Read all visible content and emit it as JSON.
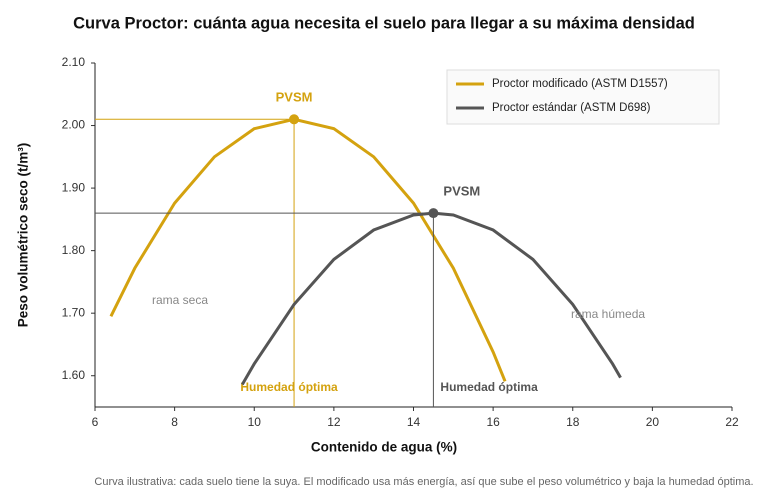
{
  "chart_data": {
    "type": "line",
    "title": "Curva Proctor: cuánta agua necesita el suelo para llegar a su máxima densidad",
    "x_label": "Contenido de agua (%)",
    "y_label": "Peso volumétrico seco (t/m³)",
    "note": "Curva ilustrativa: cada suelo tiene la suya. El modificado usa más energía, así que sube el peso volumétrico y baja la humedad óptima.",
    "xlim": [
      6,
      22
    ],
    "xticks": [
      6,
      8,
      10,
      12,
      14,
      16,
      18,
      20,
      22
    ],
    "ylim": [
      1.55,
      2.1
    ],
    "yticks": [
      {
        "value": 1.6,
        "label": "1.60"
      },
      {
        "value": 1.7,
        "label": "1.70"
      },
      {
        "value": 1.8,
        "label": "1.80"
      },
      {
        "value": 1.9,
        "label": "1.90"
      },
      {
        "value": 2.0,
        "label": "2.00"
      },
      {
        "value": 2.1,
        "label": "2.10"
      }
    ],
    "grid": false,
    "legend": "upper right",
    "annotations": [
      "rama seca",
      "rama húmeda"
    ],
    "series": [
      {
        "name": "Proctor modificado (ASTM D1557)",
        "color": "#d4a20f",
        "x": [
          6.4,
          7,
          8,
          9,
          10,
          11,
          12,
          13,
          14,
          15,
          16,
          16.3
        ],
        "values": [
          1.695,
          1.772,
          1.876,
          1.95,
          1.995,
          2.01,
          1.995,
          1.95,
          1.876,
          1.772,
          1.638,
          1.591
        ],
        "optimum": {
          "x": 11,
          "y": 2.01,
          "label": "PVSM",
          "x_label": "Humedad óptima"
        }
      },
      {
        "name": "Proctor estándar (ASTM D698)",
        "color": "#555555",
        "x": [
          9.7,
          10,
          11,
          12,
          13,
          14,
          14.5,
          15,
          16,
          17,
          18,
          19,
          19.2
        ],
        "values": [
          1.586,
          1.619,
          1.714,
          1.786,
          1.833,
          1.857,
          1.86,
          1.857,
          1.833,
          1.786,
          1.714,
          1.619,
          1.597
        ],
        "optimum": {
          "x": 14.5,
          "y": 1.86,
          "label": "PVSM",
          "x_label": "Humedad óptima"
        }
      }
    ]
  }
}
